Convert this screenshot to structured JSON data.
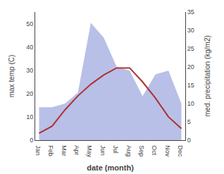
{
  "chart_data": {
    "type": "line",
    "categories": [
      "Jan",
      "Feb",
      "Mar",
      "Apr",
      "May",
      "Jun",
      "Jul",
      "Aug",
      "Sep",
      "Oct",
      "Nov",
      "Dec"
    ],
    "series": [
      {
        "type": "area",
        "axis": "y2",
        "color": "#b8c0e8",
        "values": [
          9,
          9,
          10,
          13,
          32,
          28,
          20,
          19,
          12,
          18,
          19,
          10
        ]
      },
      {
        "type": "line",
        "color": "#b03030",
        "values": [
          3,
          6,
          13,
          19,
          24,
          28,
          31,
          31,
          25,
          18,
          10,
          5
        ]
      }
    ],
    "xlabel": "date (month)",
    "ylabel": "max temp (C)",
    "y2label": "med. precipitation (kg/m2)",
    "ylim": [
      0,
      55
    ],
    "yticks": [
      0,
      10,
      20,
      30,
      40,
      50
    ],
    "y2lim": [
      0,
      35
    ],
    "y2ticks": [
      0,
      5,
      10,
      15,
      20,
      25,
      30,
      35
    ],
    "grid": false
  }
}
